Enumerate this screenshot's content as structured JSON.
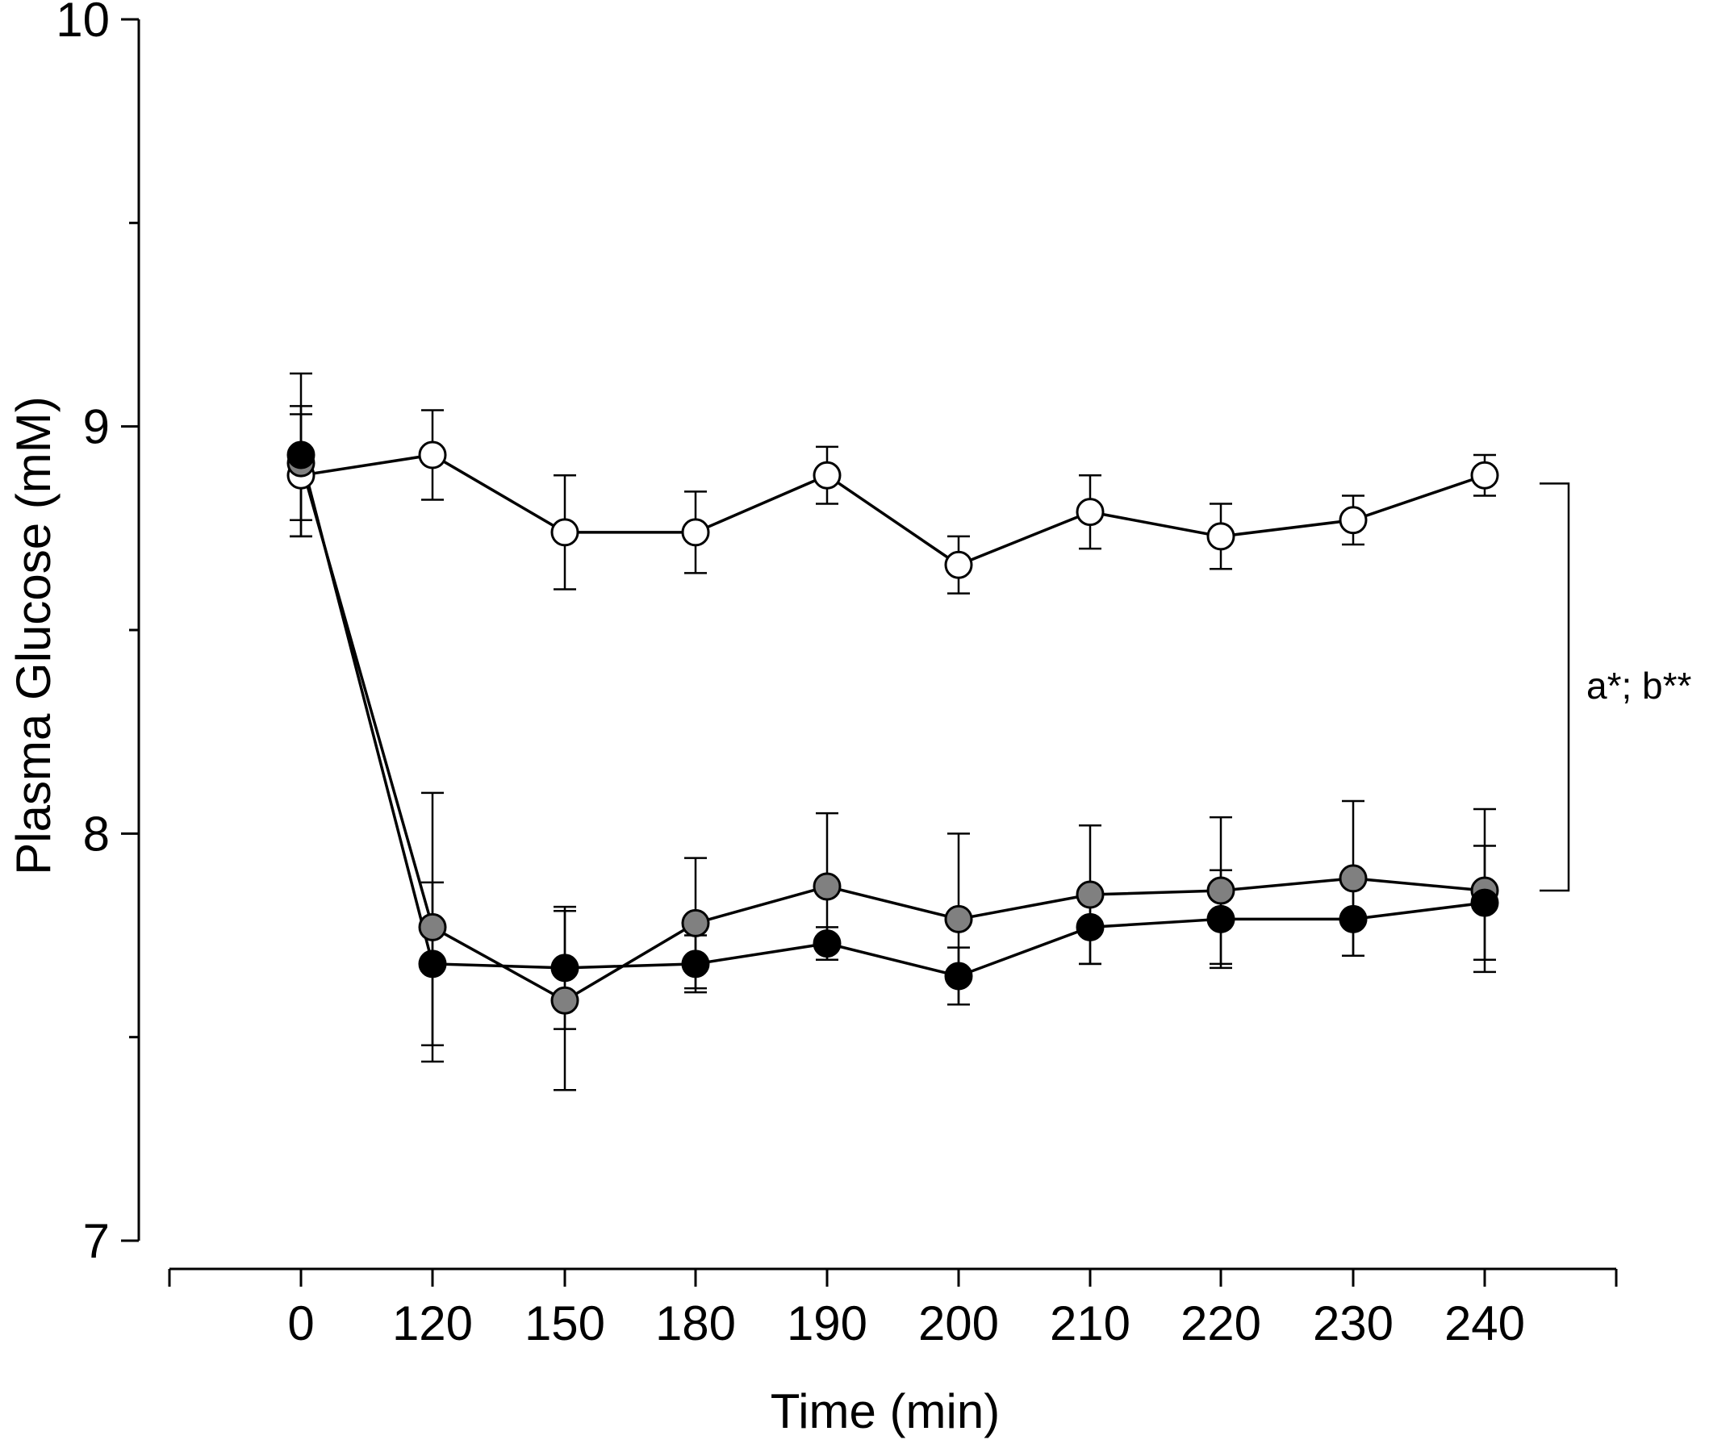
{
  "chart_data": {
    "type": "line",
    "xlabel": "Time (min)",
    "ylabel": "Plasma Glucose (mM)",
    "categories": [
      "0",
      "120",
      "150",
      "180",
      "190",
      "200",
      "210",
      "220",
      "230",
      "240"
    ],
    "ylim": [
      7,
      10
    ],
    "yticks": [
      "7",
      "8",
      "9",
      "10"
    ],
    "grid": false,
    "series": [
      {
        "marker": "open",
        "color": "#ffffff",
        "values": [
          8.88,
          8.93,
          8.74,
          8.74,
          8.88,
          8.66,
          8.79,
          8.73,
          8.77,
          8.88
        ],
        "errors": [
          0.15,
          0.11,
          0.14,
          0.1,
          0.07,
          0.07,
          0.09,
          0.08,
          0.06,
          0.05
        ]
      },
      {
        "marker": "gray",
        "color": "#808080",
        "values": [
          8.91,
          7.77,
          7.59,
          7.78,
          7.87,
          7.79,
          7.85,
          7.86,
          7.89,
          7.86
        ],
        "errors": [
          0.14,
          0.33,
          0.22,
          0.16,
          0.18,
          0.21,
          0.17,
          0.18,
          0.19,
          0.2
        ]
      },
      {
        "marker": "filled",
        "color": "#000000",
        "values": [
          8.93,
          7.68,
          7.67,
          7.68,
          7.73,
          7.65,
          7.77,
          7.79,
          7.79,
          7.83
        ],
        "errors": [
          0.2,
          0.2,
          0.15,
          0.07,
          0.04,
          0.07,
          0.09,
          0.12,
          0.09,
          0.14
        ]
      }
    ],
    "annotation": "a*; b**"
  }
}
